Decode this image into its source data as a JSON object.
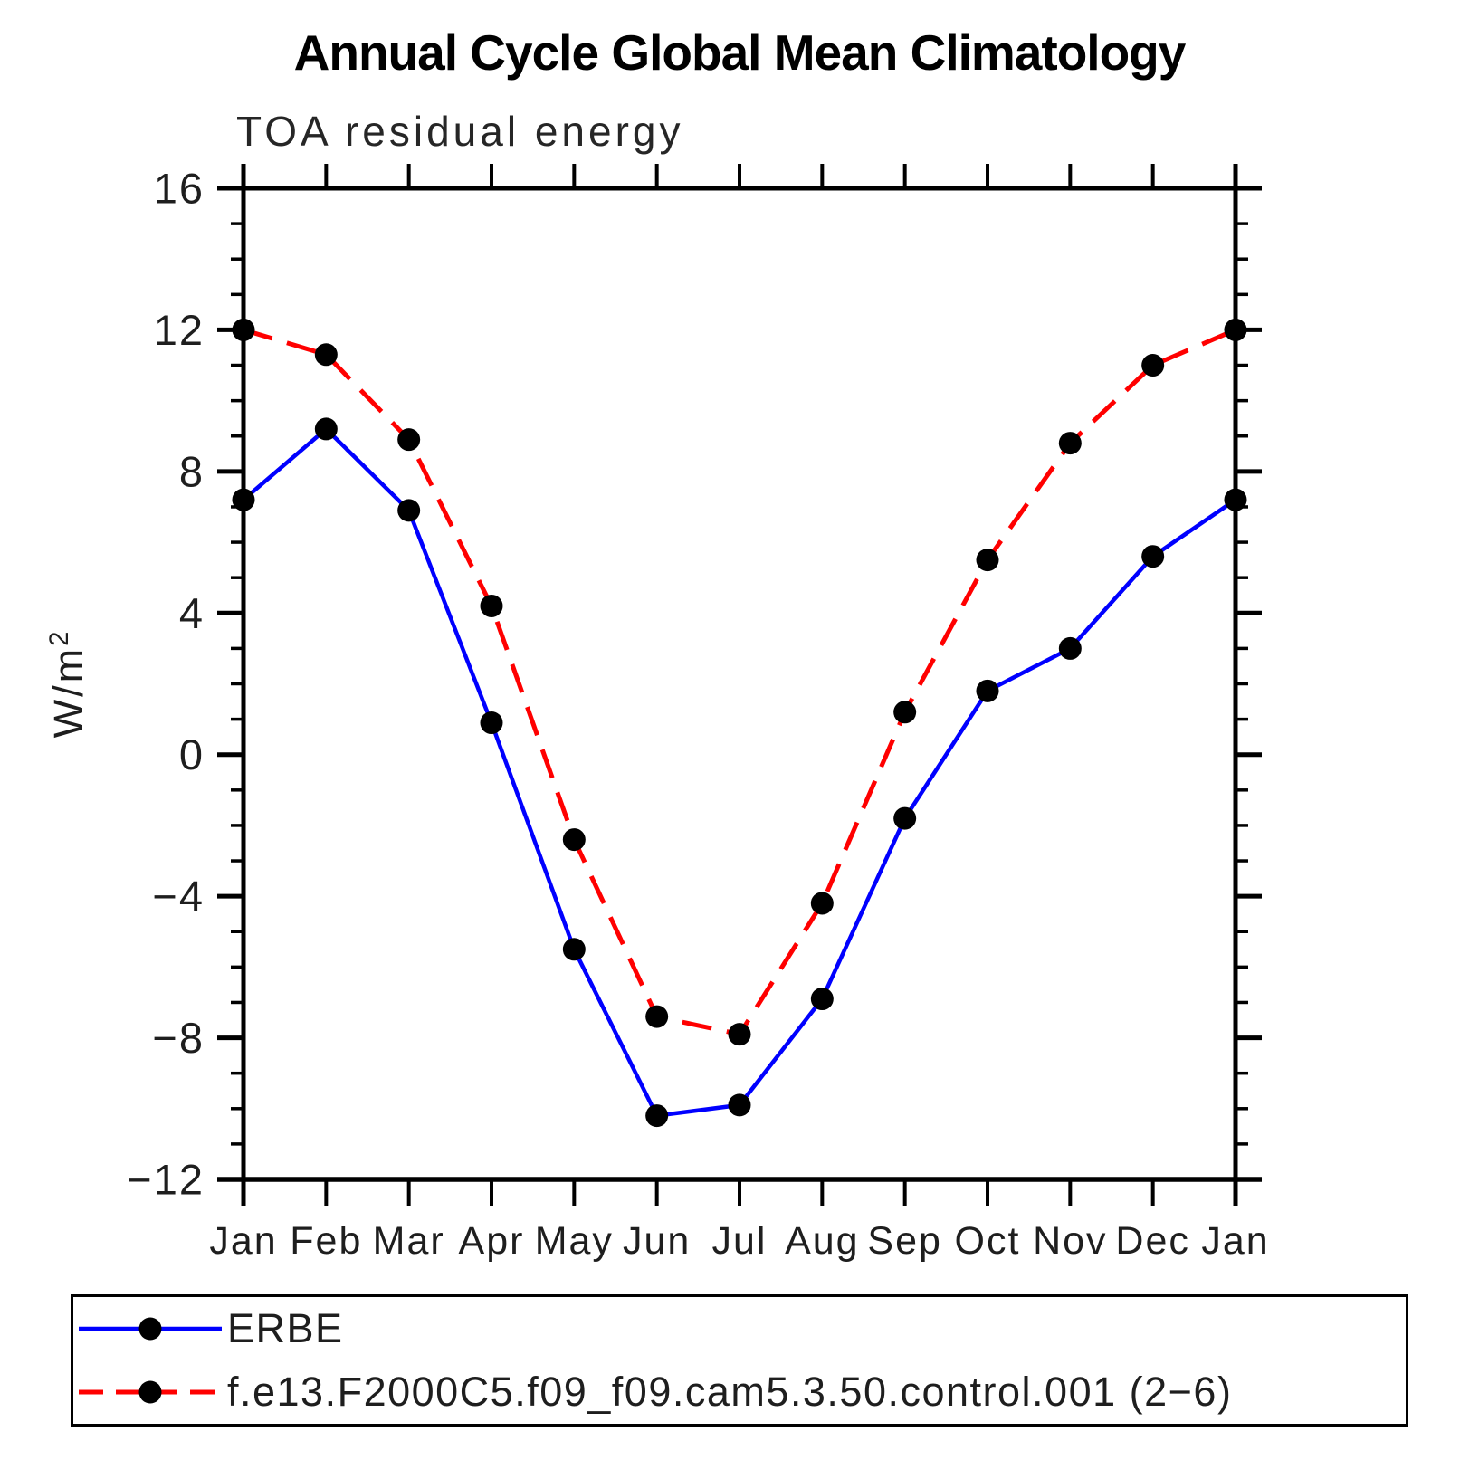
{
  "figure": {
    "title": "Annual Cycle Global Mean Climatology",
    "subtitle": "TOA residual energy"
  },
  "y_axis": {
    "label_base": "W/m",
    "label_sup": "2"
  },
  "chart_data": {
    "type": "line",
    "title": "TOA residual energy",
    "xlabel": "",
    "ylabel": "W/m2",
    "categories": [
      "Jan",
      "Feb",
      "Mar",
      "Apr",
      "May",
      "Jun",
      "Jul",
      "Aug",
      "Sep",
      "Oct",
      "Nov",
      "Dec",
      "Jan"
    ],
    "series": [
      {
        "name": "ERBE",
        "color": "#0000ff",
        "line_style": "solid",
        "marker": "filled-circle",
        "marker_color": "#000000",
        "values": [
          7.2,
          9.2,
          6.9,
          0.9,
          -5.5,
          -10.2,
          -9.9,
          -6.9,
          -1.8,
          1.8,
          3.0,
          5.6,
          7.2
        ]
      },
      {
        "name": "f.e13.F2000C5.f09_f09.cam5.3.50.control.001 (2−6)",
        "color": "#ff0000",
        "line_style": "dashed",
        "marker": "filled-circle",
        "marker_color": "#000000",
        "values": [
          12.0,
          11.3,
          8.9,
          4.2,
          -2.4,
          -7.4,
          -7.9,
          -4.2,
          1.2,
          5.5,
          8.8,
          11.0,
          12.0
        ]
      }
    ],
    "ylim": [
      -12,
      16
    ],
    "y_major_step": 4,
    "y_minor_step": 1,
    "y_major_tick_labels": [
      "−12",
      "−8",
      "−4",
      "0",
      "4",
      "8",
      "12",
      "16"
    ],
    "grid": false,
    "legend_position": "bottom",
    "axis_color": "#000000"
  }
}
